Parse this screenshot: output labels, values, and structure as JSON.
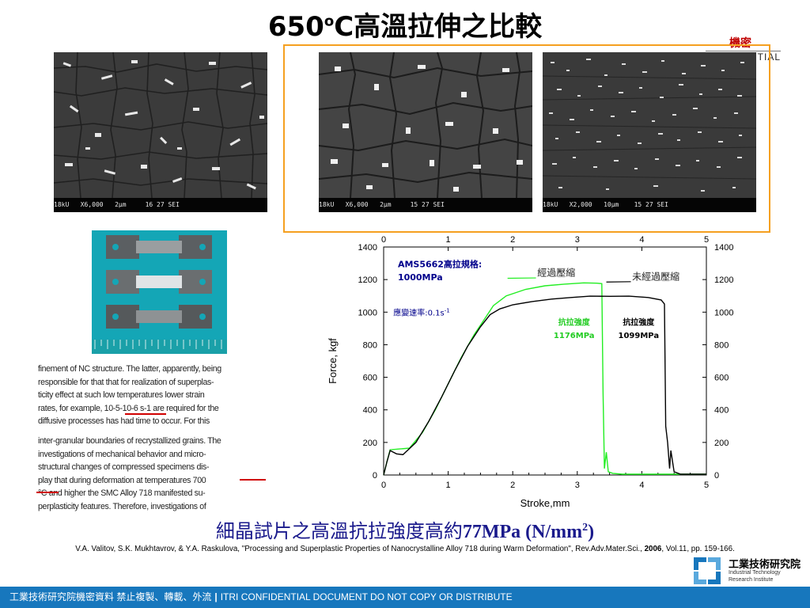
{
  "slide": {
    "title_number": "650",
    "title_sup": "o",
    "title_unit": "C",
    "title_text": "高溫拉伸之比較",
    "confidential_zh": "機密",
    "confidential_en": "TIAL"
  },
  "sem_images": [
    {
      "caption": "18kU   X6,000   2μm     16 27 SEI"
    },
    {
      "caption": "18kU   X6,000   2μm     15 27 SEI"
    },
    {
      "caption": "18kU   X2,000   10μm    15 27 SEI"
    }
  ],
  "excerpt": {
    "lines": [
      "finement of NC structure. The latter, apparently, being",
      "responsible for that that for realization of superplas-",
      "ticity effect at such low temperatures lower strain",
      "rates, for example, 10-5-10-6 s-1 are required for the",
      "diffusive processes has had time to occur. For this",
      "inter-granular boundaries of recrystallized grains. The",
      "investigations of mechanical behavior and micro-",
      "structural changes of compressed specimens dis-",
      "play that during deformation at temperatures 700",
      "°C and higher the SMC Alloy 718 manifested su-",
      "perplasticity features. Therefore, investigations of"
    ]
  },
  "conclusion": {
    "zh": "細晶試片之高溫抗拉強度高約",
    "value": "77MPa (N/mm",
    "sup": "2",
    "close": ")"
  },
  "citation": {
    "pre": "V.A. Valitov, S.K. Mukhtavrov, & Y.A. Raskulova, \"Processing and Superplastic Properties of Nanocrystalline Alloy 718 during Warm Deformation\", Rev.Adv.Mater.Sci., ",
    "year": "2006",
    "post": ", Vol.11, pp. 159-166."
  },
  "logo": {
    "zh": "工業技術研究院",
    "en1": "Industrial Technology",
    "en2": "Research Institute"
  },
  "footer": {
    "zh": "工業技術研究院機密資料 禁止複製、轉載、外流",
    "sep": "|",
    "en": "ITRI  CONFIDENTIAL  DOCUMENT  DO  NOT  COPY  OR  DISTRIBUTE"
  },
  "colors": {
    "accent_orange": "#f5a020",
    "footer_blue": "#1777bd",
    "series_green": "#22ee22",
    "series_black": "#000000",
    "spec_blue": "#00008b"
  },
  "chart_data": {
    "type": "line",
    "xlabel": "Stroke,mm",
    "ylabel": "Force, kgf",
    "xlim": [
      0,
      5
    ],
    "ylim": [
      0,
      1400
    ],
    "x_ticks": [
      "0",
      "1",
      "2",
      "3",
      "4",
      "5"
    ],
    "y_ticks": [
      "0",
      "200",
      "400",
      "600",
      "800",
      "1000",
      "1200",
      "1400"
    ],
    "mirror_axes": true,
    "spec_line1": "AMS5662高拉規格:",
    "spec_line2": "1000MPa",
    "strain_rate_base": "應變速率:0.1s",
    "strain_rate_sup": "-1",
    "series": [
      {
        "name": "經過壓縮",
        "color": "#22ee22",
        "strength_label": "抗拉強度",
        "strength_value": "1176MPa",
        "points": [
          [
            0,
            0
          ],
          [
            0.05,
            80
          ],
          [
            0.1,
            155
          ],
          [
            0.25,
            160
          ],
          [
            0.4,
            165
          ],
          [
            0.6,
            260
          ],
          [
            0.8,
            400
          ],
          [
            1.0,
            560
          ],
          [
            1.2,
            720
          ],
          [
            1.4,
            860
          ],
          [
            1.55,
            950
          ],
          [
            1.7,
            1040
          ],
          [
            1.9,
            1100
          ],
          [
            2.2,
            1140
          ],
          [
            2.5,
            1162
          ],
          [
            2.8,
            1172
          ],
          [
            3.1,
            1180
          ],
          [
            3.3,
            1178
          ],
          [
            3.38,
            1175
          ],
          [
            3.4,
            500
          ],
          [
            3.42,
            40
          ],
          [
            3.45,
            140
          ],
          [
            3.48,
            20
          ],
          [
            3.55,
            10
          ],
          [
            3.7,
            5
          ],
          [
            5,
            5
          ]
        ]
      },
      {
        "name": "未經過壓縮",
        "color": "#000000",
        "strength_label": "抗拉強度",
        "strength_value": "1099MPa",
        "points": [
          [
            0,
            0
          ],
          [
            0.05,
            80
          ],
          [
            0.1,
            150
          ],
          [
            0.2,
            130
          ],
          [
            0.3,
            125
          ],
          [
            0.5,
            200
          ],
          [
            0.7,
            330
          ],
          [
            0.9,
            480
          ],
          [
            1.1,
            640
          ],
          [
            1.3,
            790
          ],
          [
            1.5,
            910
          ],
          [
            1.65,
            985
          ],
          [
            1.8,
            1020
          ],
          [
            2.0,
            1045
          ],
          [
            2.3,
            1065
          ],
          [
            2.6,
            1080
          ],
          [
            2.9,
            1090
          ],
          [
            3.2,
            1098
          ],
          [
            3.5,
            1097
          ],
          [
            3.8,
            1098
          ],
          [
            4.1,
            1090
          ],
          [
            4.3,
            1075
          ],
          [
            4.35,
            1050
          ],
          [
            4.37,
            300
          ],
          [
            4.4,
            200
          ],
          [
            4.43,
            40
          ],
          [
            4.45,
            150
          ],
          [
            4.5,
            20
          ],
          [
            4.6,
            5
          ],
          [
            5,
            5
          ]
        ]
      }
    ]
  }
}
